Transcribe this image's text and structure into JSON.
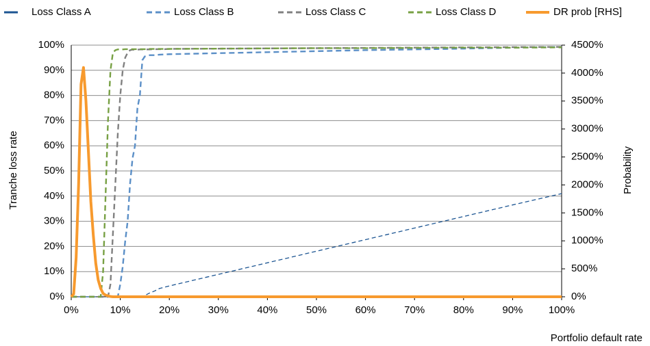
{
  "chart_data": {
    "type": "line",
    "xlabel": "Portfolio default rate",
    "ylabel": "Tranche loss rate",
    "y2label": "Probability",
    "x": [
      0,
      0.5,
      1,
      1.5,
      2,
      2.5,
      3,
      3.5,
      4,
      4.5,
      5,
      5.5,
      6,
      6.5,
      7,
      7.5,
      8,
      8.5,
      9,
      9.5,
      10,
      10.5,
      11,
      11.5,
      12,
      12.5,
      13,
      13.5,
      14,
      14.5,
      15,
      16,
      17,
      18,
      19,
      20,
      30,
      40,
      50,
      60,
      70,
      80,
      90,
      100
    ],
    "xlim": [
      0,
      100
    ],
    "xticks": [
      {
        "value": 0,
        "label": "0%"
      },
      {
        "value": 10,
        "label": "10%"
      },
      {
        "value": 20,
        "label": "20%"
      },
      {
        "value": 30,
        "label": "30%"
      },
      {
        "value": 40,
        "label": "40%"
      },
      {
        "value": 50,
        "label": "50%"
      },
      {
        "value": 60,
        "label": "60%"
      },
      {
        "value": 70,
        "label": "70%"
      },
      {
        "value": 80,
        "label": "80%"
      },
      {
        "value": 90,
        "label": "90%"
      },
      {
        "value": 100,
        "label": "100%"
      }
    ],
    "ylim": [
      0,
      100
    ],
    "yticks": [
      {
        "value": 0,
        "label": "0%"
      },
      {
        "value": 10,
        "label": "10%"
      },
      {
        "value": 20,
        "label": "20%"
      },
      {
        "value": 30,
        "label": "30%"
      },
      {
        "value": 40,
        "label": "40%"
      },
      {
        "value": 50,
        "label": "50%"
      },
      {
        "value": 60,
        "label": "60%"
      },
      {
        "value": 70,
        "label": "70%"
      },
      {
        "value": 80,
        "label": "80%"
      },
      {
        "value": 90,
        "label": "90%"
      },
      {
        "value": 100,
        "label": "100%"
      }
    ],
    "y2lim": [
      0,
      4500
    ],
    "y2ticks": [
      {
        "value": 0,
        "label": "0%"
      },
      {
        "value": 500,
        "label": "500%"
      },
      {
        "value": 1000,
        "label": "1000%"
      },
      {
        "value": 1500,
        "label": "1500%"
      },
      {
        "value": 2000,
        "label": "2000%"
      },
      {
        "value": 2500,
        "label": "2500%"
      },
      {
        "value": 3000,
        "label": "3000%"
      },
      {
        "value": 3500,
        "label": "3500%"
      },
      {
        "value": 4000,
        "label": "4000%"
      },
      {
        "value": 4500,
        "label": "4500%"
      }
    ],
    "grid": true,
    "legend": "top",
    "series": [
      {
        "name": "Loss Class A",
        "color": "#1c5592",
        "dashed": true,
        "values": [
          0,
          0,
          0,
          0,
          0,
          0,
          0,
          0,
          0,
          0,
          0,
          0,
          0,
          0,
          0,
          0,
          0,
          0,
          0,
          0,
          0,
          0,
          0,
          0,
          0,
          0,
          0,
          0,
          0,
          0.2,
          0.5,
          1.5,
          2.3,
          3.3,
          3.8,
          4.3,
          8.9,
          13.5,
          18.1,
          22.7,
          27.3,
          31.9,
          36.5,
          41
        ]
      },
      {
        "name": "Loss Class B",
        "color": "#5b8fc7",
        "dashed": true,
        "values": [
          0,
          0,
          0,
          0,
          0,
          0,
          0,
          0,
          0,
          0,
          0,
          0,
          0,
          0,
          0,
          0,
          0,
          0,
          0,
          0,
          5,
          12,
          22,
          30,
          45,
          55,
          60,
          75,
          80,
          94,
          95.5,
          96,
          96,
          96.2,
          96.3,
          96.4,
          96.8,
          97.2,
          97.6,
          98,
          98.3,
          98.6,
          99,
          99.3
        ]
      },
      {
        "name": "Loss Class C",
        "color": "#808080",
        "dashed": true,
        "values": [
          0,
          0,
          0,
          0,
          0,
          0,
          0,
          0,
          0,
          0,
          0,
          0,
          0,
          0,
          0,
          0,
          5,
          25,
          45,
          65,
          80,
          90,
          95,
          97,
          98,
          98.2,
          98.2,
          98.2,
          98.3,
          98.3,
          98.3,
          98.3,
          98.4,
          98.4,
          98.4,
          98.5,
          98.6,
          98.7,
          98.8,
          98.9,
          99,
          99.1,
          99.2,
          99.3
        ]
      },
      {
        "name": "Loss Class D",
        "color": "#77a043",
        "dashed": true,
        "values": [
          0,
          0,
          0,
          0,
          0,
          0,
          0,
          0,
          0,
          0,
          0,
          0,
          0,
          10,
          40,
          70,
          90,
          97,
          98,
          98.3,
          98.3,
          98.3,
          98.4,
          98.4,
          98.4,
          98.4,
          98.4,
          98.4,
          98.4,
          98.4,
          98.4,
          98.5,
          98.5,
          98.5,
          98.5,
          98.5,
          98.6,
          98.7,
          98.8,
          98.8,
          98.9,
          99,
          99,
          99.1
        ]
      },
      {
        "name": "DR prob [RHS]",
        "color": "#f79a2e",
        "dashed": false,
        "axis": "y2",
        "values": [
          0,
          50,
          700,
          2000,
          3800,
          4100,
          3500,
          2600,
          1700,
          1100,
          600,
          300,
          150,
          60,
          30,
          15,
          5,
          0,
          0,
          0,
          0,
          0,
          0,
          0,
          0,
          0,
          0,
          0,
          0,
          0,
          0,
          0,
          0,
          0,
          0,
          0,
          0,
          0,
          0,
          0,
          0,
          0,
          0,
          0
        ]
      }
    ]
  }
}
